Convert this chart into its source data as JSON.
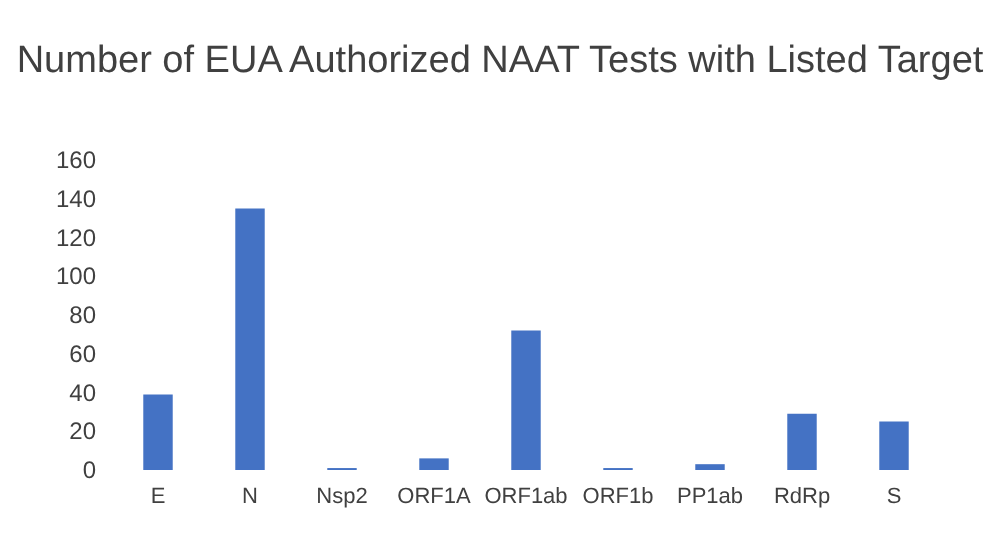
{
  "chart_data": {
    "type": "bar",
    "title": "Number of EUA Authorized NAAT Tests with Listed Target",
    "categories": [
      "E",
      "N",
      "Nsp2",
      "ORF1A",
      "ORF1ab",
      "ORF1b",
      "PP1ab",
      "RdRp",
      "S"
    ],
    "values": [
      39,
      135,
      1,
      6,
      72,
      1,
      3,
      29,
      25
    ],
    "color": "#4472c4",
    "ylim": [
      0,
      160
    ],
    "yticks": [
      0,
      20,
      40,
      60,
      80,
      100,
      120,
      140,
      160
    ],
    "grid": false
  }
}
